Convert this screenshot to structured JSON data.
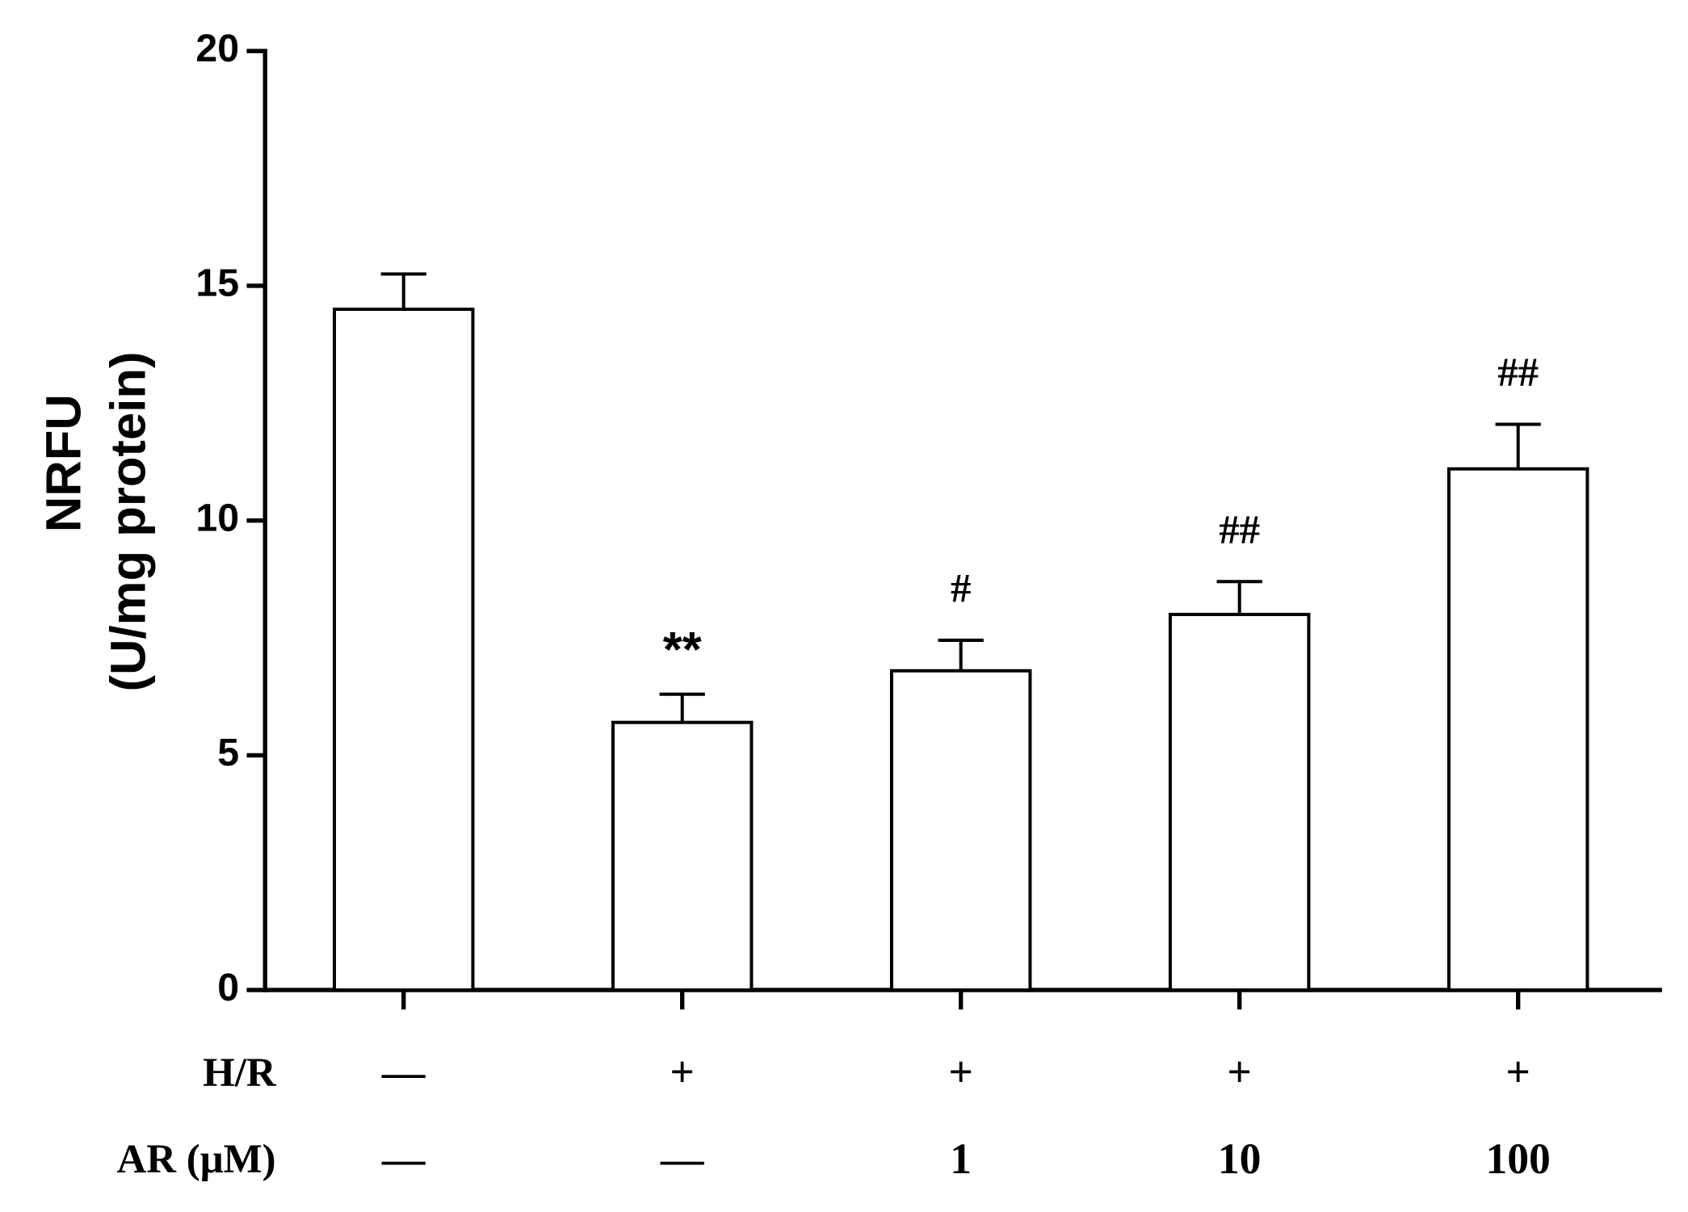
{
  "chart_data": {
    "type": "bar",
    "ylabel": [
      "NRFU",
      "(U/mg protein)"
    ],
    "category_rows": [
      {
        "label": "H/R",
        "labels": [
          "—",
          "+",
          "+",
          "+",
          "+"
        ]
      },
      {
        "label": "AR (μM)",
        "labels": [
          "—",
          "—",
          "1",
          "10",
          "100"
        ]
      }
    ],
    "values": [
      14.5,
      5.7,
      6.8,
      8.0,
      11.1
    ],
    "errors": [
      0.75,
      0.6,
      0.65,
      0.7,
      0.95
    ],
    "annotations": [
      null,
      "**",
      "#",
      "##",
      "##"
    ],
    "color": "#ffffff",
    "ylim": [
      0,
      20
    ],
    "yticks": [
      0,
      5,
      10,
      15,
      20
    ],
    "grid": false
  }
}
